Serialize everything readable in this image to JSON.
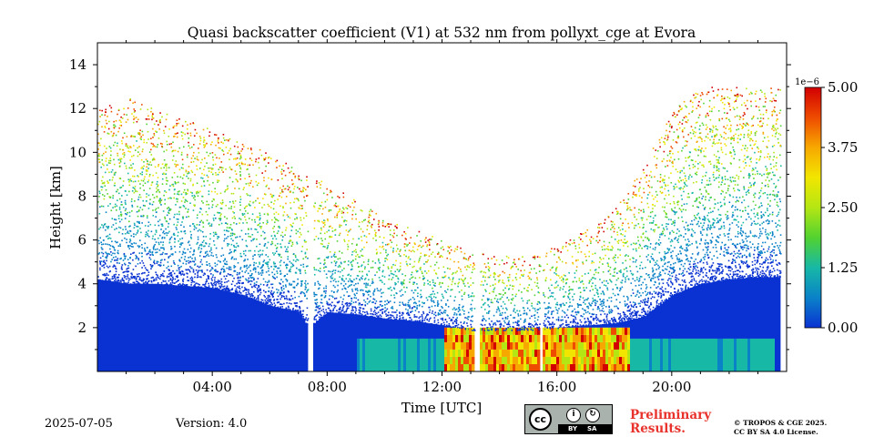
{
  "chart_data": {
    "type": "heatmap",
    "title": "Quasi backscatter coefficient (V1) at 532 nm from pollyxt_cge at Evora",
    "xlabel": "Time [UTC]",
    "ylabel": "Height [km]",
    "xlim": [
      0,
      24
    ],
    "ylim": [
      0,
      15
    ],
    "xticks": [
      4,
      8,
      12,
      16,
      20
    ],
    "xtick_labels": [
      "04:00",
      "08:00",
      "12:00",
      "16:00",
      "20:00"
    ],
    "yticks": [
      2,
      4,
      6,
      8,
      10,
      12,
      14
    ],
    "ytick_labels": [
      "2",
      "4",
      "6",
      "8",
      "10",
      "12",
      "14"
    ],
    "colorbar": {
      "min": 0.0,
      "max": 5.0,
      "ticks": [
        0.0,
        1.25,
        2.5,
        3.75,
        5.0
      ],
      "tick_labels": [
        "0.00",
        "1.25",
        "2.50",
        "3.75",
        "5.00"
      ],
      "scale_label": "1e−6",
      "colormap": [
        "#0a32d2",
        "#0a82c8",
        "#17b8a6",
        "#52d230",
        "#b4e614",
        "#f2e600",
        "#f7a800",
        "#ee4b00",
        "#d20000"
      ]
    },
    "profile": {
      "hours": [
        0,
        1,
        2,
        3,
        4,
        5,
        6,
        7,
        7.3,
        8,
        9,
        10,
        11,
        12,
        13,
        14,
        15,
        16,
        17,
        18,
        19,
        20,
        21,
        22,
        23,
        23.8
      ],
      "dense_top_km": [
        4.2,
        4.0,
        4.0,
        3.9,
        3.8,
        3.5,
        3.0,
        2.7,
        2.0,
        2.7,
        2.6,
        2.4,
        2.3,
        2.1,
        1.9,
        1.9,
        1.9,
        2.0,
        2.1,
        2.2,
        2.5,
        3.5,
        4.0,
        4.2,
        4.3,
        4.3
      ],
      "scatter_top_km": [
        12,
        12.5,
        12,
        11.5,
        11,
        10.5,
        10,
        9,
        9,
        8.5,
        7.8,
        7,
        6.5,
        6,
        5.5,
        5.3,
        5.3,
        5.8,
        6.5,
        7.5,
        9.5,
        12,
        13,
        13,
        13,
        13
      ]
    },
    "gaps_hours": [
      7.35,
      13.2,
      15.4
    ],
    "dominant_low_layer": {
      "start_hour": 12.0,
      "end_hour": 18.5,
      "top_km": 2.0,
      "peak_value": 5.0
    }
  },
  "footer": {
    "date": "2025-07-05",
    "version": "Version: 4.0",
    "cc_text": "cc",
    "cc_by": "BY",
    "cc_sa": "SA",
    "preliminary_line1": "Preliminary",
    "preliminary_line2": "Results.",
    "copyright_line1": "© TROPOS & CGE 2025.",
    "copyright_line2": "CC BY SA 4.0 License."
  }
}
